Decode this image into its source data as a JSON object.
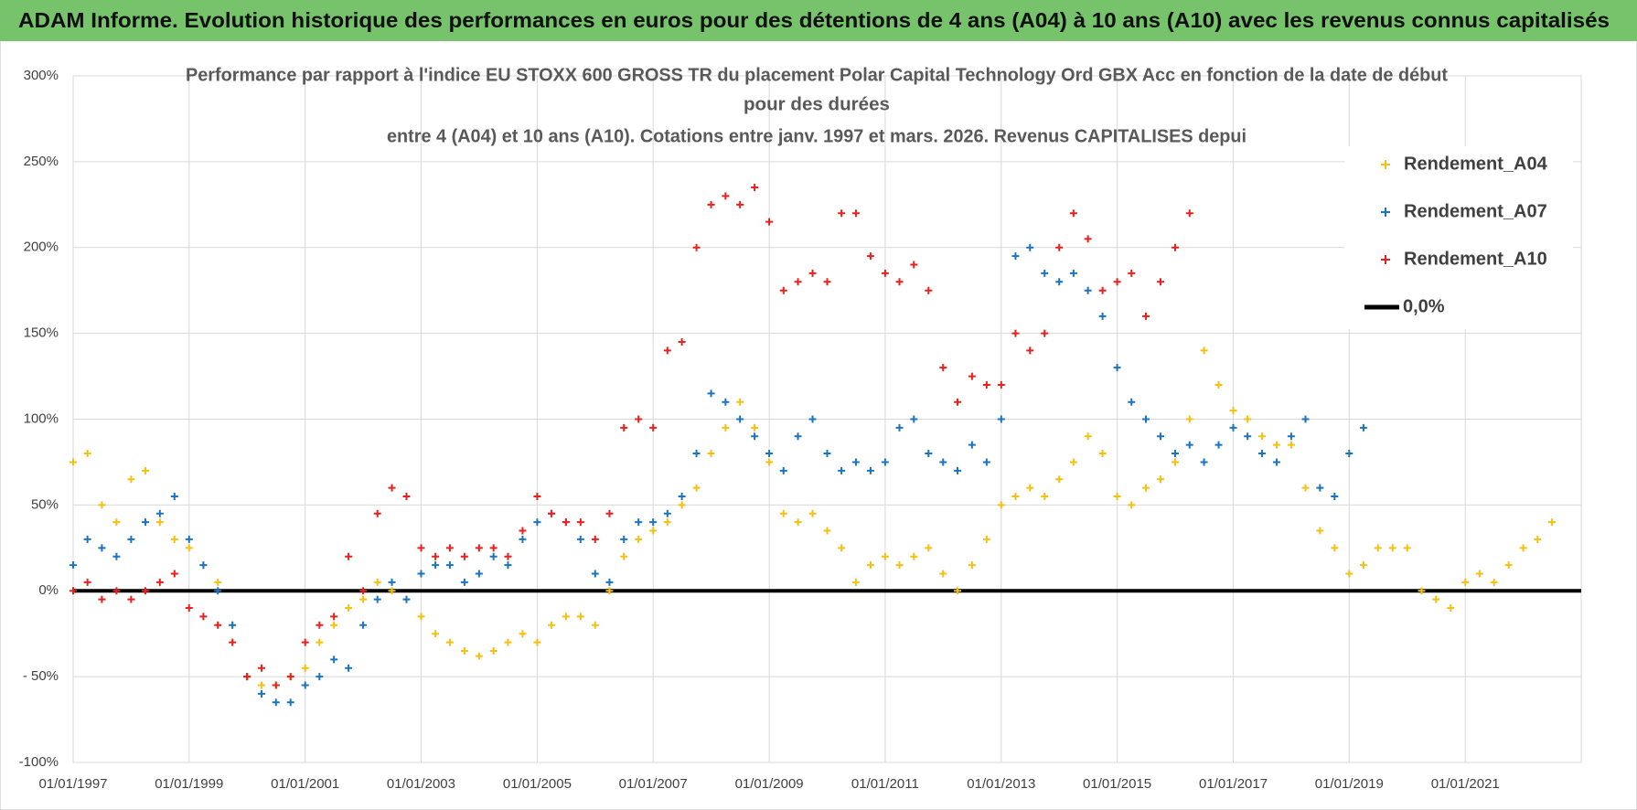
{
  "header": {
    "title": "ADAM Informe. Evolution historique des performances en euros pour des détentions de 4 ans (A04) à 10 ans (A10) avec les revenus connus capitalisés"
  },
  "chart_data": {
    "type": "scatter",
    "title_lines": [
      "Performance par rapport à l'indice EU STOXX 600 GROSS TR  du placement Polar Capital Technology Ord GBX Acc en fonction de la date de début",
      "pour des durées",
      "entre 4 (A04) et 10 ans (A10). Cotations entre janv. 1997 et mars. 2026. Revenus CAPITALISES depui"
    ],
    "xlim": [
      "1997-01-01",
      "2023-01-01"
    ],
    "xticks": [
      {
        "value": "1997-01-01",
        "label": "01/01/1997"
      },
      {
        "value": "1999-01-01",
        "label": "01/01/1999"
      },
      {
        "value": "2001-01-01",
        "label": "01/01/2001"
      },
      {
        "value": "2003-01-01",
        "label": "01/01/2003"
      },
      {
        "value": "2005-01-01",
        "label": "01/01/2005"
      },
      {
        "value": "2007-01-01",
        "label": "01/01/2007"
      },
      {
        "value": "2009-01-01",
        "label": "01/01/2009"
      },
      {
        "value": "2011-01-01",
        "label": "01/01/2011"
      },
      {
        "value": "2013-01-01",
        "label": "01/01/2013"
      },
      {
        "value": "2015-01-01",
        "label": "01/01/2015"
      },
      {
        "value": "2017-01-01",
        "label": "01/01/2017"
      },
      {
        "value": "2019-01-01",
        "label": "01/01/2019"
      },
      {
        "value": "2021-01-01",
        "label": "01/01/2021"
      }
    ],
    "ylim": [
      -100,
      300
    ],
    "yticks": [
      {
        "value": 300,
        "label": "300%"
      },
      {
        "value": 250,
        "label": "250%"
      },
      {
        "value": 200,
        "label": "200%"
      },
      {
        "value": 150,
        "label": "150%"
      },
      {
        "value": 100,
        "label": "100%"
      },
      {
        "value": 50,
        "label": "50%"
      },
      {
        "value": 0,
        "label": "0%"
      },
      {
        "value": -50,
        "label": "- 50%"
      },
      {
        "value": -100,
        "label": "-100%"
      }
    ],
    "grid": true,
    "zero_line": {
      "name": "0,0%",
      "value": 0,
      "color": "#000000"
    },
    "series": [
      {
        "name": "Rendement_A04",
        "color": "#f5c011",
        "x": [
          "1997-01-01",
          "1997-04-01",
          "1997-07-01",
          "1997-10-01",
          "1998-01-01",
          "1998-04-01",
          "1998-07-01",
          "1998-10-01",
          "1999-01-01",
          "1999-04-01",
          "1999-07-01",
          "1999-10-01",
          "2000-01-01",
          "2000-04-01",
          "2000-07-01",
          "2000-10-01",
          "2001-01-01",
          "2001-04-01",
          "2001-07-01",
          "2001-10-01",
          "2002-01-01",
          "2002-04-01",
          "2002-07-01",
          "2002-10-01",
          "2003-01-01",
          "2003-04-01",
          "2003-07-01",
          "2003-10-01",
          "2004-01-01",
          "2004-04-01",
          "2004-07-01",
          "2004-10-01",
          "2005-01-01",
          "2005-04-01",
          "2005-07-01",
          "2005-10-01",
          "2006-01-01",
          "2006-04-01",
          "2006-07-01",
          "2006-10-01",
          "2007-01-01",
          "2007-04-01",
          "2007-07-01",
          "2007-10-01",
          "2008-01-01",
          "2008-04-01",
          "2008-07-01",
          "2008-10-01",
          "2009-01-01",
          "2009-04-01",
          "2009-07-01",
          "2009-10-01",
          "2010-01-01",
          "2010-04-01",
          "2010-07-01",
          "2010-10-01",
          "2011-01-01",
          "2011-04-01",
          "2011-07-01",
          "2011-10-01",
          "2012-01-01",
          "2012-04-01",
          "2012-07-01",
          "2012-10-01",
          "2013-01-01",
          "2013-04-01",
          "2013-07-01",
          "2013-10-01",
          "2014-01-01",
          "2014-04-01",
          "2014-07-01",
          "2014-10-01",
          "2015-01-01",
          "2015-04-01",
          "2015-07-01",
          "2015-10-01",
          "2016-01-01",
          "2016-04-01",
          "2016-07-01",
          "2016-10-01",
          "2017-01-01",
          "2017-04-01",
          "2017-07-01",
          "2017-10-01",
          "2018-01-01",
          "2018-04-01",
          "2018-07-01",
          "2018-10-01",
          "2019-01-01",
          "2019-04-01",
          "2019-07-01",
          "2019-10-01",
          "2020-01-01",
          "2020-04-01",
          "2020-07-01",
          "2020-10-01",
          "2021-01-01",
          "2021-04-01",
          "2021-07-01",
          "2021-10-01",
          "2022-01-01",
          "2022-04-01",
          "2022-07-01"
        ],
        "values": [
          75,
          80,
          50,
          40,
          65,
          70,
          40,
          30,
          25,
          15,
          5,
          -20,
          -50,
          -55,
          -55,
          -50,
          -45,
          -30,
          -20,
          -10,
          -5,
          5,
          0,
          -5,
          -15,
          -25,
          -30,
          -35,
          -38,
          -35,
          -30,
          -25,
          -30,
          -20,
          -15,
          -15,
          -20,
          0,
          20,
          30,
          35,
          40,
          50,
          60,
          80,
          95,
          110,
          95,
          75,
          45,
          40,
          45,
          35,
          25,
          5,
          15,
          20,
          15,
          20,
          25,
          10,
          0,
          15,
          30,
          50,
          55,
          60,
          55,
          65,
          75,
          90,
          80,
          55,
          50,
          60,
          65,
          75,
          100,
          140,
          120,
          105,
          100,
          90,
          85,
          85,
          60,
          35,
          25,
          10,
          15,
          25,
          25,
          25,
          0,
          -5,
          -10,
          5,
          10,
          5,
          15,
          25,
          30,
          40
        ]
      },
      {
        "name": "Rendement_A07",
        "color": "#1c73c0",
        "x": [
          "1997-01-01",
          "1997-04-01",
          "1997-07-01",
          "1997-10-01",
          "1998-01-01",
          "1998-04-01",
          "1998-07-01",
          "1998-10-01",
          "1999-01-01",
          "1999-04-01",
          "1999-07-01",
          "1999-10-01",
          "2000-01-01",
          "2000-04-01",
          "2000-07-01",
          "2000-10-01",
          "2001-01-01",
          "2001-04-01",
          "2001-07-01",
          "2001-10-01",
          "2002-01-01",
          "2002-04-01",
          "2002-07-01",
          "2002-10-01",
          "2003-01-01",
          "2003-04-01",
          "2003-07-01",
          "2003-10-01",
          "2004-01-01",
          "2004-04-01",
          "2004-07-01",
          "2004-10-01",
          "2005-01-01",
          "2005-04-01",
          "2005-07-01",
          "2005-10-01",
          "2006-01-01",
          "2006-04-01",
          "2006-07-01",
          "2006-10-01",
          "2007-01-01",
          "2007-04-01",
          "2007-07-01",
          "2007-10-01",
          "2008-01-01",
          "2008-04-01",
          "2008-07-01",
          "2008-10-01",
          "2009-01-01",
          "2009-04-01",
          "2009-07-01",
          "2009-10-01",
          "2010-01-01",
          "2010-04-01",
          "2010-07-01",
          "2010-10-01",
          "2011-01-01",
          "2011-04-01",
          "2011-07-01",
          "2011-10-01",
          "2012-01-01",
          "2012-04-01",
          "2012-07-01",
          "2012-10-01",
          "2013-01-01",
          "2013-04-01",
          "2013-07-01",
          "2013-10-01",
          "2014-01-01",
          "2014-04-01",
          "2014-07-01",
          "2014-10-01",
          "2015-01-01",
          "2015-04-01",
          "2015-07-01",
          "2015-10-01",
          "2016-01-01",
          "2016-04-01",
          "2016-07-01",
          "2016-10-01",
          "2017-01-01",
          "2017-04-01",
          "2017-07-01",
          "2017-10-01",
          "2018-01-01",
          "2018-04-01",
          "2018-07-01",
          "2018-10-01",
          "2019-01-01",
          "2019-04-01"
        ],
        "values": [
          15,
          30,
          25,
          20,
          30,
          40,
          45,
          55,
          30,
          15,
          0,
          -20,
          -50,
          -60,
          -65,
          -65,
          -55,
          -50,
          -40,
          -45,
          -20,
          -5,
          5,
          -5,
          10,
          15,
          15,
          5,
          10,
          20,
          15,
          30,
          40,
          45,
          40,
          30,
          10,
          5,
          30,
          40,
          40,
          45,
          55,
          80,
          115,
          110,
          100,
          90,
          80,
          70,
          90,
          100,
          80,
          70,
          75,
          70,
          75,
          95,
          100,
          80,
          75,
          70,
          85,
          75,
          100,
          195,
          200,
          185,
          180,
          185,
          175,
          160,
          130,
          110,
          100,
          90,
          80,
          85,
          75,
          85,
          95,
          90,
          80,
          75,
          90,
          100,
          60,
          55,
          80,
          95
        ]
      },
      {
        "name": "Rendement_A10",
        "color": "#e8201e",
        "x": [
          "1997-01-01",
          "1997-04-01",
          "1997-07-01",
          "1997-10-01",
          "1998-01-01",
          "1998-04-01",
          "1998-07-01",
          "1998-10-01",
          "1999-01-01",
          "1999-04-01",
          "1999-07-01",
          "1999-10-01",
          "2000-01-01",
          "2000-04-01",
          "2000-07-01",
          "2000-10-01",
          "2001-01-01",
          "2001-04-01",
          "2001-07-01",
          "2001-10-01",
          "2002-01-01",
          "2002-04-01",
          "2002-07-01",
          "2002-10-01",
          "2003-01-01",
          "2003-04-01",
          "2003-07-01",
          "2003-10-01",
          "2004-01-01",
          "2004-04-01",
          "2004-07-01",
          "2004-10-01",
          "2005-01-01",
          "2005-04-01",
          "2005-07-01",
          "2005-10-01",
          "2006-01-01",
          "2006-04-01",
          "2006-07-01",
          "2006-10-01",
          "2007-01-01",
          "2007-04-01",
          "2007-07-01",
          "2007-10-01",
          "2008-01-01",
          "2008-04-01",
          "2008-07-01",
          "2008-10-01",
          "2009-01-01",
          "2009-04-01",
          "2009-07-01",
          "2009-10-01",
          "2010-01-01",
          "2010-04-01",
          "2010-07-01",
          "2010-10-01",
          "2011-01-01",
          "2011-04-01",
          "2011-07-01",
          "2011-10-01",
          "2012-01-01",
          "2012-04-01",
          "2012-07-01",
          "2012-10-01",
          "2013-01-01",
          "2013-04-01",
          "2013-07-01",
          "2013-10-01",
          "2014-01-01",
          "2014-04-01",
          "2014-07-01",
          "2014-10-01",
          "2015-01-01",
          "2015-04-01",
          "2015-07-01",
          "2015-10-01",
          "2016-01-01",
          "2016-04-01"
        ],
        "values": [
          0,
          5,
          -5,
          0,
          -5,
          0,
          5,
          10,
          -10,
          -15,
          -20,
          -30,
          -50,
          -45,
          -55,
          -50,
          -30,
          -20,
          -15,
          20,
          0,
          45,
          60,
          55,
          25,
          20,
          25,
          20,
          25,
          25,
          20,
          35,
          55,
          45,
          40,
          40,
          30,
          45,
          95,
          100,
          95,
          140,
          145,
          200,
          225,
          230,
          225,
          235,
          215,
          175,
          180,
          185,
          180,
          220,
          220,
          195,
          185,
          180,
          190,
          175,
          130,
          110,
          125,
          120,
          120,
          150,
          140,
          150,
          200,
          220,
          205,
          175,
          180,
          185,
          160,
          180,
          200,
          220
        ]
      }
    ]
  }
}
